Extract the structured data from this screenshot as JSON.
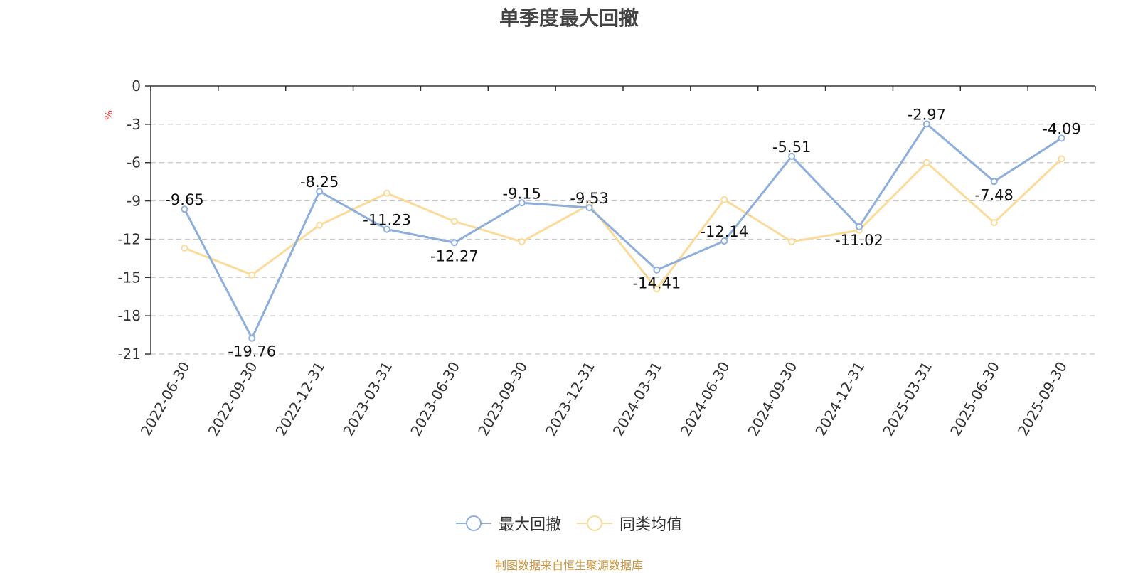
{
  "chart_data": {
    "type": "line",
    "title": "单季度最大回撤",
    "ylabel": "%",
    "ylim": [
      -21,
      0
    ],
    "yticks": [
      0,
      -3,
      -6,
      -9,
      -12,
      -15,
      -18,
      -21
    ],
    "grid": true,
    "legend_position": "bottom",
    "categories": [
      "2022-06-30",
      "2022-09-30",
      "2022-12-31",
      "2023-03-31",
      "2023-06-30",
      "2023-09-30",
      "2023-12-31",
      "2024-03-31",
      "2024-06-30",
      "2024-09-30",
      "2024-12-31",
      "2025-03-31",
      "2025-06-30",
      "2025-09-30"
    ],
    "series": [
      {
        "name": "最大回撤",
        "color": "#8eafdc",
        "values": [
          -9.65,
          -19.76,
          -8.25,
          -11.23,
          -12.27,
          -9.15,
          -9.53,
          -14.41,
          -12.14,
          -5.51,
          -11.02,
          -2.97,
          -7.48,
          -4.09
        ],
        "labels": [
          "-9.65",
          "-19.76",
          "-8.25",
          "-11.23",
          "-12.27",
          "-9.15",
          "-9.53",
          "-14.41",
          "-12.14",
          "-5.51",
          "-11.02",
          "-2.97",
          "-7.48",
          "-4.09"
        ]
      },
      {
        "name": "同类均值",
        "color": "#fcdb9a",
        "values": [
          -12.7,
          -14.8,
          -10.9,
          -8.4,
          -10.6,
          -12.2,
          -9.3,
          -15.9,
          -8.9,
          -12.2,
          -11.3,
          -6.0,
          -10.7,
          -5.7
        ]
      }
    ]
  },
  "source_note": "制图数据来自恒生聚源数据库"
}
